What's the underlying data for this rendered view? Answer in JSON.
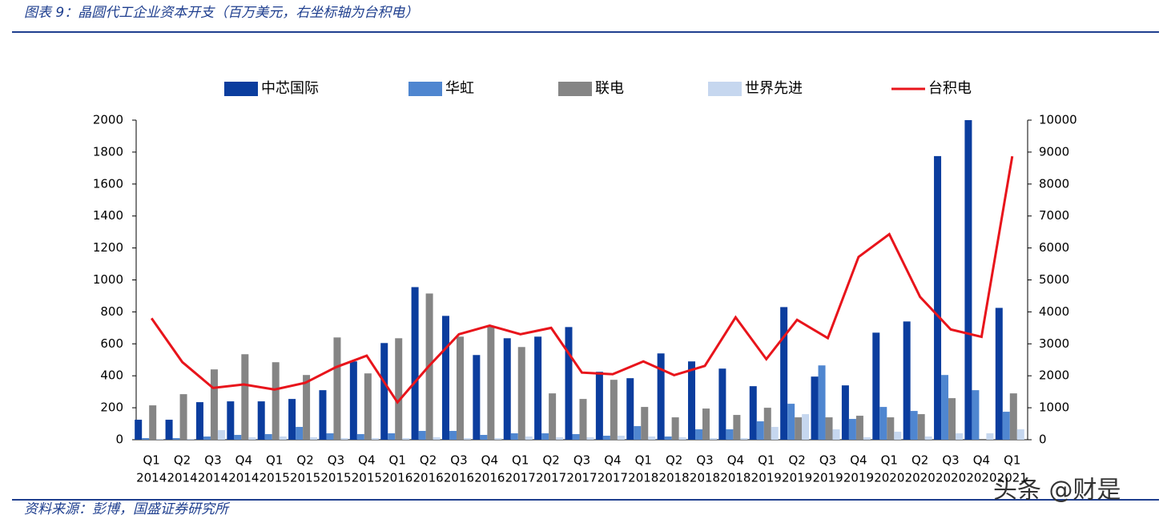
{
  "chart_data": {
    "type": "bar",
    "title": "图表 9：晶圆代工企业资本开支（百万美元，右坐标轴为台积电）",
    "source": "资料来源：彭博，国盛证券研究所",
    "watermark": "头条 @财是",
    "categories": [
      [
        "Q1",
        "2014"
      ],
      [
        "Q2",
        "2014"
      ],
      [
        "Q3",
        "2014"
      ],
      [
        "Q4",
        "2014"
      ],
      [
        "Q1",
        "2015"
      ],
      [
        "Q2",
        "2015"
      ],
      [
        "Q3",
        "2015"
      ],
      [
        "Q4",
        "2015"
      ],
      [
        "Q1",
        "2016"
      ],
      [
        "Q2",
        "2016"
      ],
      [
        "Q3",
        "2016"
      ],
      [
        "Q4",
        "2016"
      ],
      [
        "Q1",
        "2017"
      ],
      [
        "Q2",
        "2017"
      ],
      [
        "Q3",
        "2017"
      ],
      [
        "Q4",
        "2017"
      ],
      [
        "Q1",
        "2018"
      ],
      [
        "Q2",
        "2018"
      ],
      [
        "Q3",
        "2018"
      ],
      [
        "Q4",
        "2018"
      ],
      [
        "Q1",
        "2019"
      ],
      [
        "Q2",
        "2019"
      ],
      [
        "Q3",
        "2019"
      ],
      [
        "Q4",
        "2019"
      ],
      [
        "Q1",
        "2020"
      ],
      [
        "Q2",
        "2020"
      ],
      [
        "Q3",
        "2020"
      ],
      [
        "Q4",
        "2020"
      ],
      [
        "Q1",
        "2021"
      ]
    ],
    "series": [
      {
        "name": "中芯国际",
        "color": "#0b3d9e",
        "values": [
          125,
          125,
          235,
          240,
          240,
          255,
          310,
          490,
          605,
          955,
          775,
          530,
          635,
          645,
          705,
          425,
          385,
          540,
          490,
          445,
          335,
          830,
          395,
          340,
          670,
          740,
          1775,
          2000,
          825
        ]
      },
      {
        "name": "华虹",
        "color": "#4f86d0",
        "values": [
          10,
          10,
          20,
          30,
          35,
          80,
          40,
          35,
          40,
          55,
          55,
          30,
          40,
          40,
          35,
          25,
          85,
          20,
          65,
          65,
          115,
          225,
          465,
          130,
          205,
          180,
          405,
          310,
          175
        ]
      },
      {
        "name": "联电",
        "color": "#858585",
        "values": [
          215,
          285,
          440,
          535,
          485,
          405,
          640,
          415,
          635,
          915,
          645,
          710,
          580,
          290,
          255,
          375,
          205,
          140,
          195,
          155,
          200,
          140,
          140,
          150,
          140,
          160,
          260,
          0,
          290
        ]
      },
      {
        "name": "世界先进",
        "color": "#c6d7ef",
        "values": [
          5,
          5,
          60,
          15,
          20,
          15,
          10,
          10,
          10,
          15,
          10,
          10,
          20,
          15,
          15,
          25,
          20,
          15,
          10,
          10,
          80,
          160,
          65,
          15,
          50,
          20,
          40,
          40,
          65
        ]
      },
      {
        "name": "台积电",
        "color": "#e8141b",
        "type": "line",
        "axis": "y2",
        "values": [
          3800,
          2430,
          1620,
          1730,
          1570,
          1780,
          2270,
          2630,
          1170,
          2280,
          3300,
          3570,
          3300,
          3500,
          2100,
          2050,
          2450,
          2020,
          2310,
          3830,
          2520,
          3750,
          3180,
          5720,
          6430,
          4470,
          3450,
          3220,
          8870
        ]
      }
    ],
    "ylim": [
      0,
      2000
    ],
    "yticks": [
      0,
      200,
      400,
      600,
      800,
      1000,
      1200,
      1400,
      1600,
      1800,
      2000
    ],
    "y2lim": [
      0,
      10000
    ],
    "y2ticks": [
      0,
      1000,
      2000,
      3000,
      4000,
      5000,
      6000,
      7000,
      8000,
      9000,
      10000
    ]
  }
}
